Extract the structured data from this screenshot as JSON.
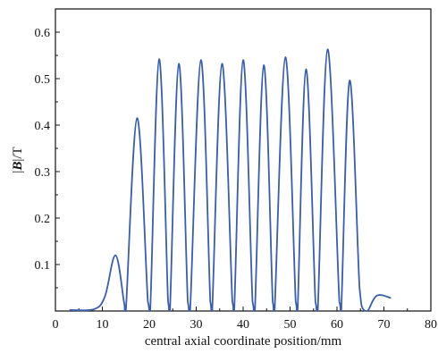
{
  "chart_data": {
    "type": "line",
    "xlabel": "central axial coordinate position/mm",
    "ylabel": {
      "prefix": "|",
      "bold": "B",
      "suffix": "|/T"
    },
    "xlim": [
      0,
      80
    ],
    "ylim": [
      0,
      0.65
    ],
    "x_ticks": [
      0,
      10,
      20,
      30,
      40,
      50,
      60,
      70,
      80
    ],
    "y_ticks": [
      0.1,
      0.2,
      0.3,
      0.4,
      0.5,
      0.6
    ],
    "y_tick_labels": [
      "0.1",
      "0.2",
      "0.3",
      "0.4",
      "0.5",
      "0.6"
    ],
    "x_tick_labels": [
      "0",
      "10",
      "20",
      "30",
      "40",
      "50",
      "60",
      "70",
      "80"
    ],
    "grid": false,
    "line_color": "#3a5ea8",
    "series": [
      {
        "x": [
          3,
          8,
          10.5,
          12.8,
          14.6,
          15.0,
          17.4,
          19.7,
          20.2,
          22.1,
          24.0,
          24.4,
          26.3,
          28.2,
          28.7,
          31.0,
          33.0,
          33.4,
          35.5,
          37.7,
          38.1,
          40.0,
          42.0,
          42.5,
          44.4,
          46.3,
          46.7,
          49.0,
          51.2,
          51.6,
          53.4,
          55.4,
          55.9,
          58.0,
          60.5,
          60.9,
          62.7,
          64.8,
          65.5,
          66.5,
          68.5,
          71.5
        ],
        "y": [
          0.002,
          0.003,
          0.03,
          0.12,
          0.02,
          0.0,
          0.415,
          0.02,
          0.0,
          0.542,
          0.02,
          0.0,
          0.532,
          0.02,
          0.0,
          0.54,
          0.02,
          0.0,
          0.532,
          0.02,
          0.0,
          0.54,
          0.02,
          0.0,
          0.529,
          0.02,
          0.0,
          0.546,
          0.02,
          0.0,
          0.52,
          0.02,
          0.0,
          0.563,
          0.02,
          0.0,
          0.496,
          0.05,
          0.005,
          0.0,
          0.033,
          0.028
        ]
      }
    ]
  }
}
